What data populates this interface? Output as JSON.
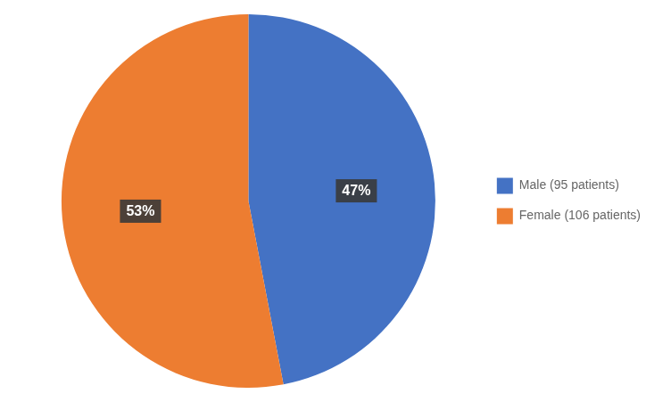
{
  "chart_data": {
    "type": "pie",
    "categories": [
      "Male (95 patients)",
      "Female (106 patients)"
    ],
    "values": [
      47,
      53
    ],
    "value_labels": [
      "47%",
      "53%"
    ],
    "colors": [
      "#4472C4",
      "#ED7D31"
    ],
    "data_labels": true,
    "legend": "right"
  }
}
